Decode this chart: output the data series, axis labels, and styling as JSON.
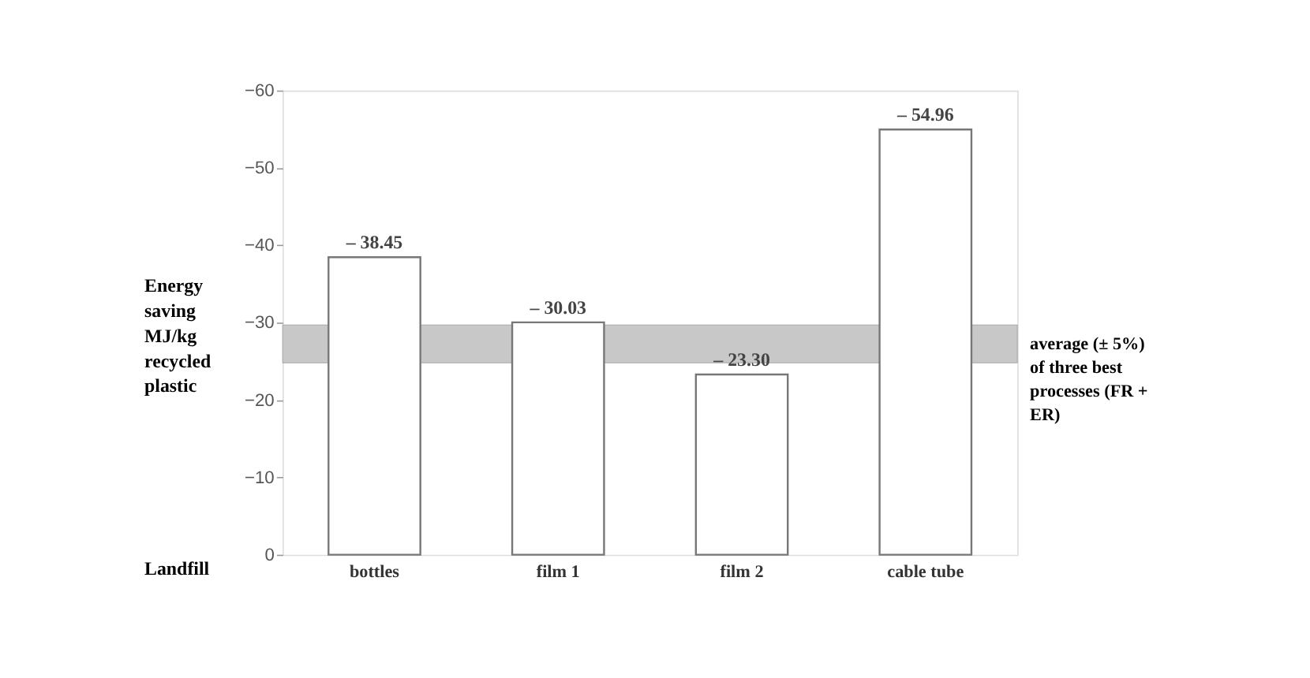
{
  "chart_data": {
    "type": "bar",
    "ylabel": "Energy saving MJ/kg recycled plastic",
    "categories": [
      "bottles",
      "film 1",
      "film 2",
      "cable tube"
    ],
    "values": [
      -38.45,
      -30.03,
      -23.3,
      -54.96
    ],
    "value_labels": [
      "– 38.45",
      "– 30.03",
      "– 23.30",
      "– 54.96"
    ],
    "color": "#ffffff",
    "ylim": [
      0,
      -60
    ],
    "yticks": [
      0,
      -10,
      -20,
      -30,
      -40,
      -50,
      -60
    ],
    "bands": [
      {
        "axis": "y",
        "from": -24.8,
        "to": -29.7,
        "label": "average (± 5%) of three best processes (FR + ER)",
        "color": "#c8c8c8"
      }
    ],
    "annotations": [
      "Landfill"
    ],
    "grid": false
  }
}
